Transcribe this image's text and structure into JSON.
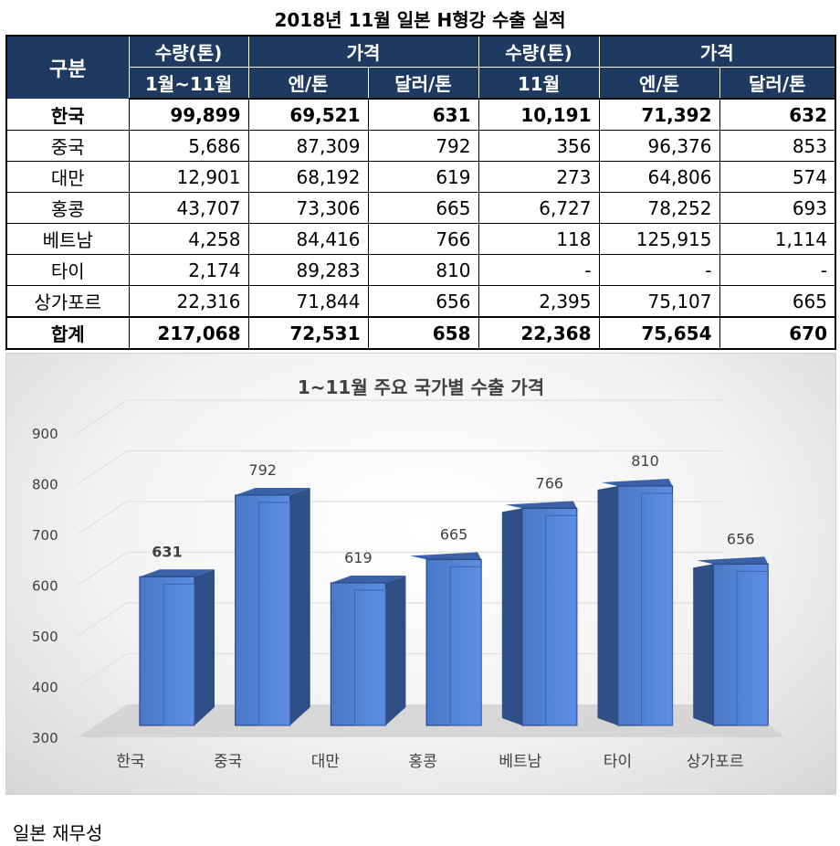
{
  "title": "2018년 11월 일본 H형강 수출 실적",
  "table": {
    "header_row1": [
      "구분",
      "수량(톤)",
      "가격",
      "수량(톤)",
      "가격"
    ],
    "header_row2": [
      "1월~11월",
      "엔/톤",
      "달러/톤",
      "11월",
      "엔/톤",
      "달러/톤"
    ],
    "rows": [
      [
        "한국",
        "99,899",
        "69,521",
        "631",
        "10,191",
        "71,392",
        "632"
      ],
      [
        "중국",
        "5,686",
        "87,309",
        "792",
        "356",
        "96,376",
        "853"
      ],
      [
        "대만",
        "12,901",
        "68,192",
        "619",
        "273",
        "64,806",
        "574"
      ],
      [
        "홍콩",
        "43,707",
        "73,306",
        "665",
        "6,727",
        "78,252",
        "693"
      ],
      [
        "베트남",
        "4,258",
        "84,416",
        "766",
        "118",
        "125,915",
        "1,114"
      ],
      [
        "타이",
        "2,174",
        "89,283",
        "810",
        "-",
        "-",
        "-"
      ],
      [
        "상가포르",
        "22,316",
        "71,844",
        "656",
        "2,395",
        "75,107",
        "665"
      ],
      [
        "합계",
        "217,068",
        "72,531",
        "658",
        "22,368",
        "75,654",
        "670"
      ]
    ]
  },
  "chart_data": {
    "type": "bar",
    "title": "1~11월 주요 국가별 수출 가격",
    "categories": [
      "한국",
      "중국",
      "대만",
      "홍콩",
      "베트남",
      "타이",
      "상가포르"
    ],
    "values": [
      631,
      792,
      619,
      665,
      766,
      810,
      656
    ],
    "data_labels": [
      "631",
      "792",
      "619",
      "665",
      "766",
      "810",
      "656"
    ],
    "ylim": [
      300,
      900
    ],
    "yticks": [
      "300",
      "400",
      "500",
      "600",
      "700",
      "800",
      "900"
    ],
    "grid": true,
    "legend": "none",
    "three_d": true,
    "bar_color": "#4f7fd6"
  },
  "source": "일본 재무성"
}
